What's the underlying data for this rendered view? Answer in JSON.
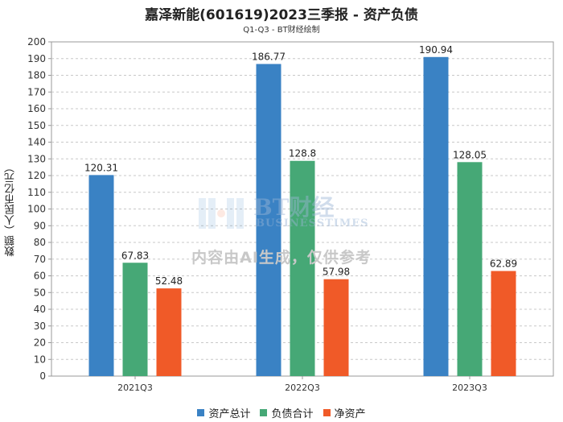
{
  "title": "嘉泽新能(601619)2023三季报 - 资产负债",
  "subtitle": "Q1-Q3 - BT财经绘制",
  "watermark": {
    "logo_text": "BT财经",
    "logo_subtext": "BUSINESSTIMES",
    "note": "内容由AI生成，仅供参考"
  },
  "chart_data": {
    "type": "bar",
    "title": "嘉泽新能(601619)2023三季报 - 资产负债",
    "subtitle": "Q1-Q3 - BT财经绘制",
    "xlabel": "",
    "ylabel": "数额（人民币亿元）",
    "ylim": [
      0,
      200
    ],
    "ytick_step": 10,
    "grid": true,
    "legend_position": "bottom",
    "categories": [
      "2021Q3",
      "2022Q3",
      "2023Q3"
    ],
    "series": [
      {
        "name": "资产总计",
        "color": "#3a82c4",
        "values": [
          120.31,
          186.77,
          190.94
        ],
        "labels": [
          "120.31",
          "186.77",
          "190.94"
        ]
      },
      {
        "name": "负债合计",
        "color": "#46a876",
        "values": [
          67.83,
          128.8,
          128.05
        ],
        "labels": [
          "67.83",
          "128.8",
          "128.05"
        ]
      },
      {
        "name": "净资产",
        "color": "#f05a28",
        "values": [
          52.48,
          57.98,
          62.89
        ],
        "labels": [
          "52.48",
          "57.98",
          "62.89"
        ]
      }
    ]
  }
}
